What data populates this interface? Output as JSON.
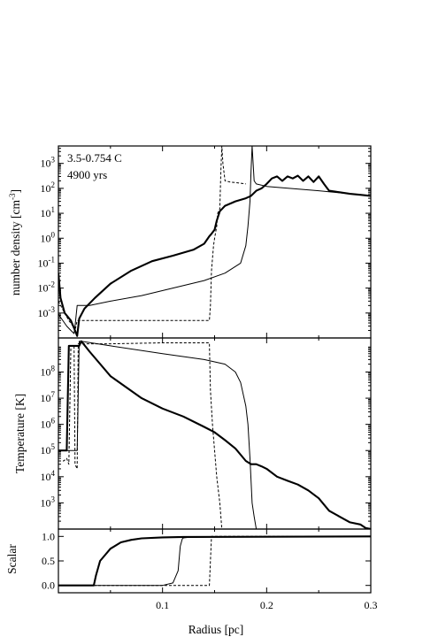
{
  "chart_data": [
    {
      "panel": "top",
      "type": "line",
      "annotation_lines": [
        "3.5-0.754 C",
        "4900 yrs"
      ],
      "ylabel": "number density [cm^-3]",
      "ylabel_parts": {
        "main": "number density [cm",
        "sup": "-3",
        "end": "]"
      },
      "yscale": "log",
      "ylim": [
        0.0001,
        5000
      ],
      "xlim": [
        0,
        0.3
      ],
      "yticks": [
        {
          "base": "10",
          "exp": "3",
          "value": 1000
        },
        {
          "base": "10",
          "exp": "2",
          "value": 100
        },
        {
          "base": "10",
          "exp": "1",
          "value": 10
        },
        {
          "base": "10",
          "exp": "0",
          "value": 1
        },
        {
          "base": "10",
          "exp": "-1",
          "value": 0.1
        },
        {
          "base": "10",
          "exp": "-2",
          "value": 0.01
        },
        {
          "base": "10",
          "exp": "-3",
          "value": 0.001
        }
      ],
      "series": [
        {
          "style": "thick",
          "x": [
            0,
            0.002,
            0.006,
            0.012,
            0.016,
            0.018,
            0.02,
            0.025,
            0.035,
            0.05,
            0.07,
            0.09,
            0.11,
            0.13,
            0.14,
            0.145,
            0.147,
            0.15,
            0.152,
            0.155,
            0.16,
            0.17,
            0.18,
            0.185,
            0.19,
            0.195,
            0.2,
            0.205,
            0.21,
            0.215,
            0.22,
            0.225,
            0.23,
            0.235,
            0.24,
            0.245,
            0.25,
            0.255,
            0.26,
            0.27,
            0.28,
            0.29,
            0.3
          ],
          "y": [
            0.04,
            0.004,
            0.001,
            0.0005,
            0.0002,
            0.00012,
            0.0006,
            0.0015,
            0.004,
            0.015,
            0.05,
            0.12,
            0.2,
            0.35,
            0.6,
            1.2,
            1.5,
            2.2,
            5,
            12,
            20,
            30,
            40,
            50,
            80,
            100,
            150,
            250,
            300,
            200,
            300,
            250,
            320,
            200,
            300,
            180,
            300,
            150,
            80,
            70,
            60,
            55,
            50
          ]
        },
        {
          "style": "thin",
          "x": [
            0,
            0.008,
            0.012,
            0.015,
            0.016,
            0.018,
            0.02,
            0.03,
            0.05,
            0.08,
            0.11,
            0.14,
            0.16,
            0.175,
            0.18,
            0.182,
            0.184,
            0.185,
            0.186,
            0.188,
            0.19,
            0.2,
            0.25,
            0.3
          ],
          "y": [
            0.0009,
            0.0003,
            0.0002,
            0.00015,
            0.0003,
            0.002,
            0.002,
            0.002,
            0.003,
            0.005,
            0.01,
            0.02,
            0.04,
            0.1,
            0.5,
            3,
            30,
            500,
            5000,
            200,
            150,
            120,
            80,
            50
          ]
        },
        {
          "style": "dashed",
          "x": [
            0,
            0.005,
            0.01,
            0.014,
            0.016,
            0.018,
            0.02,
            0.04,
            0.08,
            0.12,
            0.14,
            0.145,
            0.146,
            0.147,
            0.149,
            0.15,
            0.152,
            0.153,
            0.155,
            0.156,
            0.157,
            0.158,
            0.16,
            0.165,
            0.17,
            0.18
          ],
          "y": [
            0.003,
            0.0012,
            0.0005,
            0.0003,
            0.0002,
            0.0005,
            0.0005,
            0.0005,
            0.0005,
            0.0005,
            0.0005,
            0.0005,
            0.002,
            0.05,
            0.5,
            1,
            3,
            10,
            15,
            500,
            5000,
            1000,
            200,
            180,
            170,
            150
          ]
        }
      ]
    },
    {
      "panel": "middle",
      "type": "line",
      "ylabel": "Temperature [K]",
      "yscale": "log",
      "ylim": [
        100,
        2000000000
      ],
      "xlim": [
        0,
        0.3
      ],
      "yticks": [
        {
          "base": "10",
          "exp": "8",
          "value": 100000000
        },
        {
          "base": "10",
          "exp": "7",
          "value": 10000000
        },
        {
          "base": "10",
          "exp": "6",
          "value": 1000000
        },
        {
          "base": "10",
          "exp": "5",
          "value": 100000
        },
        {
          "base": "10",
          "exp": "4",
          "value": 10000
        },
        {
          "base": "10",
          "exp": "3",
          "value": 1000
        }
      ],
      "series": [
        {
          "style": "thick",
          "x": [
            0,
            0.008,
            0.01,
            0.012,
            0.016,
            0.018,
            0.02,
            0.022,
            0.03,
            0.05,
            0.08,
            0.1,
            0.12,
            0.14,
            0.15,
            0.16,
            0.17,
            0.18,
            0.185,
            0.19,
            0.195,
            0.2,
            0.21,
            0.22,
            0.23,
            0.24,
            0.25,
            0.26,
            0.27,
            0.28,
            0.29,
            0.295,
            0.3
          ],
          "y": [
            100000,
            100000,
            1000000000,
            1000000000,
            1000000000,
            1000000000,
            1000000000,
            1500000000,
            600000000,
            70000000,
            10000000,
            4000000,
            2000000,
            800000,
            500000,
            250000,
            120000,
            40000,
            30000,
            30000,
            25000,
            20000,
            10000,
            7000,
            5000,
            3000,
            1500,
            500,
            300,
            180,
            150,
            110,
            100
          ]
        },
        {
          "style": "thin",
          "x": [
            0,
            0.008,
            0.01,
            0.014,
            0.016,
            0.018,
            0.02,
            0.022,
            0.05,
            0.1,
            0.14,
            0.16,
            0.17,
            0.175,
            0.18,
            0.182,
            0.184,
            0.186,
            0.188,
            0.19
          ],
          "y": [
            100000,
            100000,
            100000,
            100000,
            100000,
            100000,
            1500000000,
            1500000000,
            1000000000,
            500000000,
            300000000,
            200000000,
            100000000,
            40000000,
            5000000,
            1000000,
            50000,
            1000,
            300,
            100
          ]
        },
        {
          "style": "dashed",
          "x": [
            0,
            0.005,
            0.008,
            0.01,
            0.012,
            0.015,
            0.016,
            0.018,
            0.019,
            0.02,
            0.021,
            0.05,
            0.1,
            0.14,
            0.145,
            0.146,
            0.148,
            0.15,
            0.152,
            0.155,
            0.157
          ],
          "y": [
            40000,
            40000,
            50000,
            30000,
            1000000000,
            1000000000,
            30000,
            20000,
            1200000000,
            1200000000,
            1200000000,
            1200000000,
            1300000000,
            1300000000,
            1300000000,
            20000000,
            1000000,
            100000,
            10000,
            1000,
            100
          ]
        }
      ]
    },
    {
      "panel": "bottom",
      "type": "line",
      "ylabel": "Scalar",
      "yscale": "linear",
      "ylim": [
        -0.15,
        1.15
      ],
      "xlim": [
        0,
        0.3
      ],
      "xlabel": "Radius [pc]",
      "xticks": [
        {
          "label": "0.1",
          "value": 0.1
        },
        {
          "label": "0.2",
          "value": 0.2
        },
        {
          "label": "0.3",
          "value": 0.3
        }
      ],
      "yticks": [
        {
          "label": "1.0",
          "value": 1.0
        },
        {
          "label": "0.5",
          "value": 0.5
        },
        {
          "label": "0.0",
          "value": 0.0
        }
      ],
      "series": [
        {
          "style": "thick",
          "x": [
            0,
            0.034,
            0.036,
            0.04,
            0.05,
            0.06,
            0.07,
            0.08,
            0.1,
            0.12,
            0.3
          ],
          "y": [
            0,
            0,
            0.2,
            0.5,
            0.75,
            0.88,
            0.93,
            0.96,
            0.98,
            0.99,
            1.0
          ]
        },
        {
          "style": "thin",
          "x": [
            0,
            0.1,
            0.11,
            0.115,
            0.117,
            0.119,
            0.12,
            0.125,
            0.15,
            0.3
          ],
          "y": [
            0,
            0,
            0.05,
            0.3,
            0.8,
            0.95,
            0.97,
            0.98,
            0.99,
            1.0
          ]
        },
        {
          "style": "dashed",
          "x": [
            0,
            0.14,
            0.145,
            0.147,
            0.15,
            0.3
          ],
          "y": [
            0,
            0,
            0,
            1.0,
            1.0,
            1.0
          ]
        }
      ]
    }
  ]
}
